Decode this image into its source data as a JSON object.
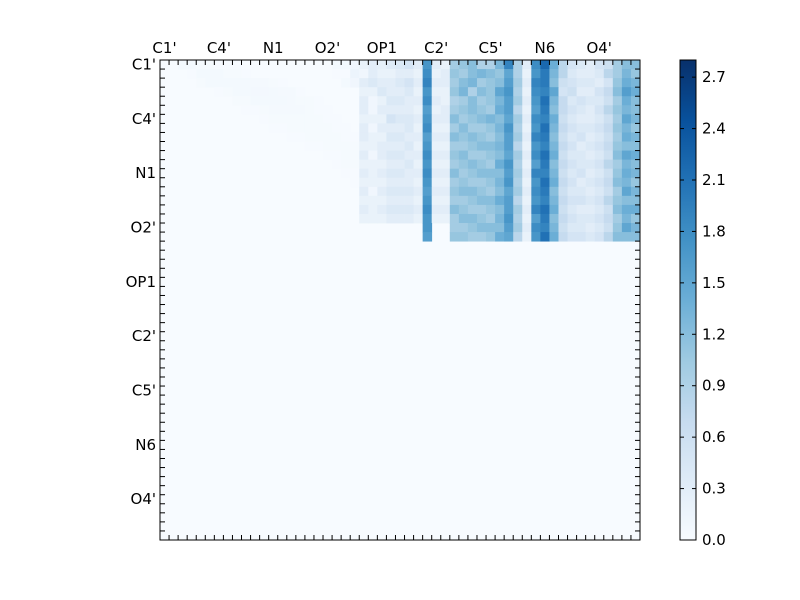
{
  "chart_data": {
    "type": "heatmap",
    "title": "",
    "xlabel": "",
    "ylabel": "",
    "tick_labels": [
      "C1'",
      "C4'",
      "N1",
      "O2'",
      "OP1",
      "C2'",
      "C5'",
      "N6",
      "O4'"
    ],
    "grid_size": 53,
    "label_step": 6,
    "colormap": "Blues",
    "colorbar": {
      "vmin": 0.0,
      "vmax": 2.8,
      "ticks": [
        0.0,
        0.3,
        0.6,
        0.9,
        1.2,
        1.5,
        1.8,
        2.1,
        2.4,
        2.7
      ],
      "tick_labels": [
        "0.0",
        "0.3",
        "0.6",
        "0.9",
        "1.2",
        "1.5",
        "1.8",
        "2.1",
        "2.4",
        "2.7"
      ]
    },
    "values": [
      [
        0.0,
        0.0,
        0.05,
        0.05,
        0.03,
        0.03,
        0.02,
        0.02,
        0.02,
        0.0,
        0.0,
        0.0,
        0.0,
        0.0,
        0.0,
        0.0,
        0.0,
        0.0,
        0.0,
        0.05,
        0.05,
        0.1,
        0.2,
        0.3,
        0.25,
        0.35,
        0.4,
        0.5,
        0.3,
        1.7,
        0.3,
        0.2,
        1.0,
        1.1,
        1.2,
        0.9,
        0.9,
        1.3,
        1.9,
        0.9,
        0.3,
        1.8,
        2.2,
        1.4,
        0.8,
        0.5,
        0.4,
        0.3,
        0.5,
        0.6,
        1.0,
        1.2,
        1.2
      ],
      [
        0.0,
        0.0,
        0.0,
        0.02,
        0.05,
        0.05,
        0.05,
        0.03,
        0.03,
        0.02,
        0.0,
        0.0,
        0.0,
        0.0,
        0.0,
        0.0,
        0.0,
        0.0,
        0.0,
        0.02,
        0.02,
        0.15,
        0.1,
        0.3,
        0.2,
        0.2,
        0.3,
        0.3,
        0.2,
        1.8,
        0.2,
        0.3,
        1.1,
        1.0,
        1.2,
        1.3,
        1.2,
        1.1,
        1.5,
        0.9,
        0.2,
        1.7,
        2.0,
        1.3,
        0.8,
        0.4,
        0.3,
        0.3,
        0.4,
        0.8,
        1.0,
        1.3,
        1.1
      ],
      [
        0.0,
        0.0,
        0.0,
        0.0,
        0.03,
        0.05,
        0.05,
        0.05,
        0.05,
        0.05,
        0.04,
        0.04,
        0.03,
        0.02,
        0.0,
        0.0,
        0.0,
        0.0,
        0.0,
        0.0,
        0.05,
        0.1,
        0.3,
        0.4,
        0.3,
        0.3,
        0.4,
        0.5,
        0.3,
        1.9,
        0.3,
        0.3,
        1.0,
        1.2,
        1.3,
        1.0,
        1.1,
        1.2,
        1.6,
        1.0,
        0.3,
        1.9,
        2.0,
        1.2,
        0.6,
        0.5,
        0.4,
        0.4,
        0.3,
        0.5,
        1.1,
        1.4,
        1.3
      ],
      [
        0.0,
        0.0,
        0.0,
        0.0,
        0.0,
        0.0,
        0.02,
        0.03,
        0.05,
        0.05,
        0.06,
        0.06,
        0.05,
        0.04,
        0.04,
        0.02,
        0.0,
        0.0,
        0.0,
        0.0,
        0.0,
        0.0,
        0.2,
        0.2,
        0.4,
        0.3,
        0.3,
        0.4,
        0.2,
        1.7,
        0.2,
        0.2,
        1.1,
        1.3,
        0.9,
        1.2,
        1.1,
        1.5,
        1.7,
        0.9,
        0.2,
        1.8,
        1.9,
        1.5,
        0.5,
        0.6,
        0.3,
        0.3,
        0.5,
        0.7,
        1.2,
        1.6,
        1.4
      ],
      [
        0.0,
        0.0,
        0.0,
        0.0,
        0.0,
        0.0,
        0.0,
        0.0,
        0.03,
        0.03,
        0.05,
        0.05,
        0.05,
        0.05,
        0.04,
        0.03,
        0.03,
        0.02,
        0.0,
        0.0,
        0.0,
        0.0,
        0.3,
        0.1,
        0.2,
        0.4,
        0.4,
        0.3,
        0.3,
        1.8,
        0.3,
        0.2,
        0.9,
        1.0,
        1.2,
        1.0,
        1.1,
        1.3,
        1.6,
        1.0,
        0.3,
        1.7,
        2.1,
        1.3,
        0.7,
        0.4,
        0.5,
        0.4,
        0.4,
        0.6,
        1.0,
        1.4,
        1.2
      ],
      [
        0.0,
        0.0,
        0.0,
        0.0,
        0.0,
        0.0,
        0.0,
        0.0,
        0.0,
        0.02,
        0.02,
        0.03,
        0.04,
        0.04,
        0.04,
        0.04,
        0.03,
        0.02,
        0.02,
        0.0,
        0.0,
        0.0,
        0.3,
        0.1,
        0.3,
        0.3,
        0.3,
        0.3,
        0.2,
        1.6,
        0.2,
        0.3,
        1.0,
        1.1,
        1.2,
        1.1,
        1.0,
        1.4,
        1.6,
        0.8,
        0.2,
        1.6,
        2.0,
        1.2,
        0.7,
        0.5,
        0.4,
        0.3,
        0.5,
        0.8,
        1.1,
        1.3,
        1.2
      ],
      [
        0.0,
        0.0,
        0.0,
        0.0,
        0.0,
        0.0,
        0.0,
        0.0,
        0.0,
        0.0,
        0.0,
        0.02,
        0.03,
        0.03,
        0.03,
        0.03,
        0.03,
        0.03,
        0.02,
        0.02,
        0.0,
        0.0,
        0.2,
        0.2,
        0.2,
        0.5,
        0.4,
        0.4,
        0.3,
        1.7,
        0.3,
        0.3,
        1.2,
        1.0,
        1.1,
        1.2,
        1.3,
        1.2,
        1.5,
        1.0,
        0.3,
        1.8,
        1.9,
        1.4,
        0.6,
        0.4,
        0.3,
        0.3,
        0.4,
        0.6,
        1.0,
        1.5,
        1.3
      ],
      [
        0.0,
        0.0,
        0.0,
        0.0,
        0.0,
        0.0,
        0.0,
        0.0,
        0.0,
        0.0,
        0.0,
        0.0,
        0.02,
        0.02,
        0.03,
        0.03,
        0.03,
        0.03,
        0.03,
        0.02,
        0.02,
        0.0,
        0.3,
        0.1,
        0.3,
        0.3,
        0.3,
        0.4,
        0.2,
        1.8,
        0.2,
        0.2,
        1.0,
        1.2,
        1.0,
        1.0,
        1.1,
        1.3,
        1.7,
        0.9,
        0.2,
        1.7,
        2.1,
        1.3,
        0.7,
        0.5,
        0.4,
        0.4,
        0.5,
        0.7,
        1.1,
        1.3,
        1.1
      ],
      [
        0.0,
        0.0,
        0.0,
        0.0,
        0.0,
        0.0,
        0.0,
        0.0,
        0.0,
        0.0,
        0.0,
        0.0,
        0.0,
        0.0,
        0.02,
        0.02,
        0.03,
        0.03,
        0.03,
        0.03,
        0.02,
        0.02,
        0.3,
        0.2,
        0.2,
        0.4,
        0.4,
        0.3,
        0.3,
        1.6,
        0.3,
        0.3,
        1.2,
        1.1,
        1.2,
        1.1,
        1.0,
        1.2,
        1.6,
        1.0,
        0.3,
        1.9,
        2.0,
        1.2,
        0.6,
        0.4,
        0.5,
        0.3,
        0.4,
        0.6,
        1.0,
        1.4,
        1.3
      ],
      [
        0.0,
        0.0,
        0.0,
        0.0,
        0.0,
        0.0,
        0.0,
        0.0,
        0.0,
        0.0,
        0.0,
        0.0,
        0.0,
        0.0,
        0.0,
        0.0,
        0.02,
        0.02,
        0.03,
        0.03,
        0.03,
        0.03,
        0.2,
        0.2,
        0.3,
        0.3,
        0.3,
        0.4,
        0.2,
        1.7,
        0.2,
        0.2,
        1.0,
        1.0,
        1.1,
        1.2,
        1.2,
        1.3,
        1.6,
        0.8,
        0.2,
        1.7,
        1.9,
        1.3,
        0.7,
        0.5,
        0.3,
        0.4,
        0.5,
        0.7,
        1.1,
        1.2,
        1.2
      ],
      [
        0.0,
        0.0,
        0.0,
        0.0,
        0.0,
        0.0,
        0.0,
        0.0,
        0.0,
        0.0,
        0.0,
        0.0,
        0.0,
        0.0,
        0.0,
        0.0,
        0.0,
        0.0,
        0.02,
        0.02,
        0.03,
        0.03,
        0.3,
        0.1,
        0.3,
        0.4,
        0.4,
        0.3,
        0.3,
        1.8,
        0.3,
        0.3,
        1.1,
        1.2,
        1.0,
        1.0,
        1.1,
        1.2,
        1.5,
        1.0,
        0.3,
        1.8,
        2.1,
        1.4,
        0.6,
        0.4,
        0.4,
        0.3,
        0.4,
        0.6,
        1.2,
        1.5,
        1.4
      ],
      [
        0.0,
        0.0,
        0.0,
        0.0,
        0.0,
        0.0,
        0.0,
        0.0,
        0.0,
        0.0,
        0.0,
        0.0,
        0.0,
        0.0,
        0.0,
        0.0,
        0.0,
        0.0,
        0.0,
        0.02,
        0.03,
        0.03,
        0.2,
        0.2,
        0.2,
        0.3,
        0.3,
        0.4,
        0.2,
        1.7,
        0.2,
        0.2,
        1.0,
        1.1,
        1.2,
        1.1,
        1.0,
        1.4,
        1.7,
        0.9,
        0.2,
        1.6,
        2.0,
        1.2,
        0.7,
        0.5,
        0.4,
        0.4,
        0.5,
        0.8,
        1.0,
        1.3,
        1.2
      ],
      [
        0.0,
        0.0,
        0.0,
        0.0,
        0.0,
        0.0,
        0.0,
        0.0,
        0.0,
        0.0,
        0.0,
        0.0,
        0.0,
        0.0,
        0.0,
        0.0,
        0.0,
        0.0,
        0.0,
        0.0,
        0.02,
        0.02,
        0.3,
        0.2,
        0.3,
        0.4,
        0.4,
        0.3,
        0.3,
        1.8,
        0.3,
        0.3,
        1.2,
        1.0,
        1.1,
        1.2,
        1.2,
        1.2,
        1.6,
        1.0,
        0.3,
        1.9,
        1.9,
        1.3,
        0.6,
        0.4,
        0.5,
        0.3,
        0.4,
        0.6,
        1.1,
        1.4,
        1.3
      ],
      [
        0.0,
        0.0,
        0.0,
        0.0,
        0.0,
        0.0,
        0.0,
        0.0,
        0.0,
        0.0,
        0.0,
        0.0,
        0.0,
        0.0,
        0.0,
        0.0,
        0.0,
        0.0,
        0.0,
        0.0,
        0.0,
        0.02,
        0.2,
        0.2,
        0.2,
        0.3,
        0.3,
        0.3,
        0.2,
        1.7,
        0.2,
        0.2,
        1.0,
        1.1,
        1.0,
        1.0,
        1.1,
        1.3,
        1.7,
        0.9,
        0.2,
        1.7,
        2.1,
        1.4,
        0.7,
        0.5,
        0.3,
        0.4,
        0.5,
        0.7,
        1.2,
        1.3,
        1.1
      ],
      [
        0.0,
        0.0,
        0.0,
        0.0,
        0.0,
        0.0,
        0.0,
        0.0,
        0.0,
        0.0,
        0.0,
        0.0,
        0.0,
        0.0,
        0.0,
        0.0,
        0.0,
        0.0,
        0.0,
        0.0,
        0.0,
        0.0,
        0.3,
        0.1,
        0.3,
        0.4,
        0.4,
        0.4,
        0.3,
        1.6,
        0.3,
        0.3,
        1.1,
        1.2,
        1.2,
        1.1,
        1.0,
        1.2,
        1.5,
        1.0,
        0.3,
        1.8,
        2.0,
        1.2,
        0.6,
        0.4,
        0.4,
        0.3,
        0.4,
        0.6,
        1.0,
        1.5,
        1.3
      ],
      [
        0.0,
        0.0,
        0.0,
        0.0,
        0.0,
        0.0,
        0.0,
        0.0,
        0.0,
        0.0,
        0.0,
        0.0,
        0.0,
        0.0,
        0.0,
        0.0,
        0.0,
        0.0,
        0.0,
        0.0,
        0.0,
        0.0,
        0.2,
        0.2,
        0.2,
        0.3,
        0.3,
        0.3,
        0.2,
        1.7,
        0.2,
        0.2,
        1.0,
        1.0,
        1.1,
        1.2,
        1.2,
        1.4,
        1.6,
        0.8,
        0.2,
        1.7,
        1.9,
        1.3,
        0.7,
        0.5,
        0.5,
        0.4,
        0.5,
        0.8,
        1.1,
        1.2,
        1.2
      ],
      [
        0.0,
        0.0,
        0.0,
        0.0,
        0.0,
        0.0,
        0.0,
        0.0,
        0.0,
        0.0,
        0.0,
        0.0,
        0.0,
        0.0,
        0.0,
        0.0,
        0.0,
        0.0,
        0.0,
        0.0,
        0.0,
        0.0,
        0.3,
        0.2,
        0.3,
        0.4,
        0.4,
        0.4,
        0.3,
        1.8,
        0.3,
        0.3,
        1.2,
        1.1,
        1.0,
        1.0,
        1.1,
        1.2,
        1.6,
        1.0,
        0.3,
        1.9,
        2.1,
        1.4,
        0.6,
        0.4,
        0.3,
        0.3,
        0.4,
        0.6,
        1.2,
        1.4,
        1.4
      ],
      [
        0.0,
        0.0,
        0.0,
        0.0,
        0.0,
        0.0,
        0.0,
        0.0,
        0.0,
        0.0,
        0.0,
        0.0,
        0.0,
        0.0,
        0.0,
        0.0,
        0.0,
        0.0,
        0.0,
        0.0,
        0.0,
        0.0,
        0.2,
        0.2,
        0.2,
        0.3,
        0.3,
        0.3,
        0.2,
        1.7,
        0.2,
        0.2,
        1.0,
        1.2,
        1.2,
        1.1,
        1.0,
        1.3,
        1.7,
        0.9,
        0.2,
        1.6,
        2.0,
        1.2,
        0.7,
        0.5,
        0.4,
        0.4,
        0.5,
        0.7,
        1.0,
        1.3,
        1.1
      ],
      [
        0.0,
        0.0,
        0.0,
        0.0,
        0.0,
        0.0,
        0.0,
        0.0,
        0.0,
        0.0,
        0.0,
        0.0,
        0.0,
        0.0,
        0.0,
        0.0,
        0.0,
        0.0,
        0.0,
        0.0,
        0.0,
        0.0,
        0.0,
        0.0,
        0.0,
        0.0,
        0.0,
        0.0,
        0.0,
        1.7,
        0.0,
        0.0,
        1.0,
        1.0,
        1.1,
        1.2,
        1.2,
        1.2,
        1.6,
        1.0,
        0.3,
        1.8,
        1.9,
        1.3,
        0.6,
        0.4,
        0.4,
        0.3,
        0.4,
        0.6,
        1.1,
        1.5,
        1.3
      ],
      [
        0.0,
        0.0,
        0.0,
        0.0,
        0.0,
        0.0,
        0.0,
        0.0,
        0.0,
        0.0,
        0.0,
        0.0,
        0.0,
        0.0,
        0.0,
        0.0,
        0.0,
        0.0,
        0.0,
        0.0,
        0.0,
        0.0,
        0.0,
        0.0,
        0.0,
        0.0,
        0.0,
        0.0,
        0.0,
        1.6,
        0.0,
        0.0,
        1.1,
        1.1,
        1.0,
        1.0,
        1.1,
        1.4,
        1.5,
        0.8,
        0.2,
        1.7,
        2.1,
        1.4,
        0.7,
        0.5,
        0.5,
        0.4,
        0.5,
        0.8,
        1.2,
        1.2,
        1.2
      ],
      [
        0.0,
        0.0,
        0.0,
        0.0,
        0.0,
        0.0,
        0.0,
        0.0,
        0.0,
        0.0,
        0.0,
        0.0,
        0.0,
        0.0,
        0.0,
        0.0,
        0.0,
        0.0,
        0.0,
        0.0,
        0.0,
        0.0,
        0.0,
        0.0,
        0.0,
        0.0,
        0.0,
        0.0,
        0.0,
        0.0,
        0.0,
        0.0,
        0.0,
        0.0,
        0.0,
        0.0,
        0.0,
        0.0,
        0.0,
        0.0,
        0.0,
        0.0,
        0.0,
        0.0,
        0.0,
        0.0,
        0.0,
        0.0,
        0.0,
        0.0,
        0.0,
        0.0,
        0.0
      ]
    ]
  }
}
